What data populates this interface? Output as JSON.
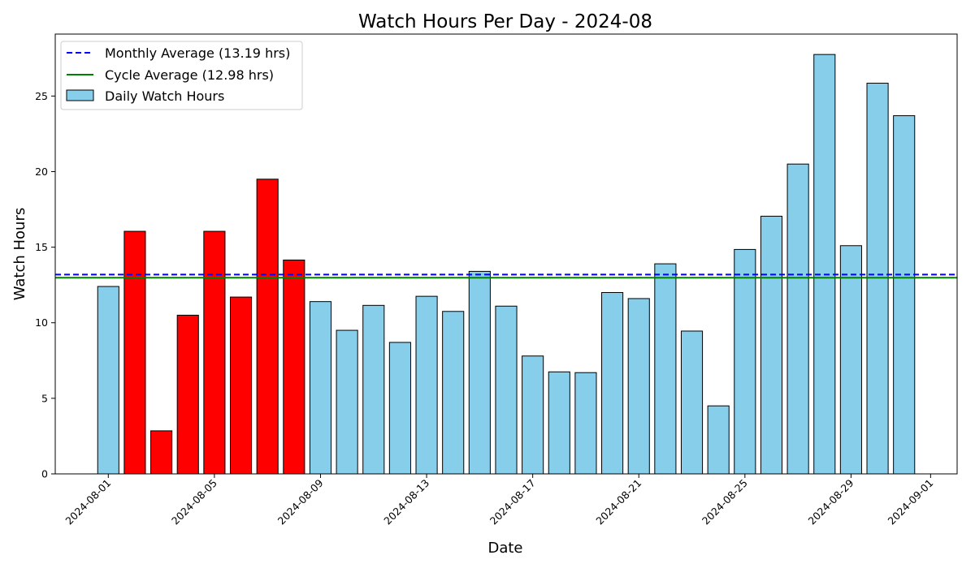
{
  "chart_data": {
    "type": "bar",
    "title": "Watch Hours Per Day - 2024-08",
    "xlabel": "Date",
    "ylabel": "Watch Hours",
    "ylim": [
      0,
      29.1
    ],
    "yticks": [
      0,
      5,
      10,
      15,
      20,
      25
    ],
    "x_range": [
      "2024-07-30",
      "2024-09-01"
    ],
    "xticks": [
      "2024-08-01",
      "2024-08-05",
      "2024-08-09",
      "2024-08-13",
      "2024-08-17",
      "2024-08-21",
      "2024-08-25",
      "2024-08-29",
      "2024-09-01"
    ],
    "categories": [
      "2024-08-01",
      "2024-08-02",
      "2024-08-03",
      "2024-08-04",
      "2024-08-05",
      "2024-08-06",
      "2024-08-07",
      "2024-08-08",
      "2024-08-09",
      "2024-08-10",
      "2024-08-11",
      "2024-08-12",
      "2024-08-13",
      "2024-08-14",
      "2024-08-15",
      "2024-08-16",
      "2024-08-17",
      "2024-08-18",
      "2024-08-19",
      "2024-08-20",
      "2024-08-21",
      "2024-08-22",
      "2024-08-23",
      "2024-08-24",
      "2024-08-25",
      "2024-08-26",
      "2024-08-27",
      "2024-08-28",
      "2024-08-29",
      "2024-08-30",
      "2024-08-31"
    ],
    "values": [
      12.4,
      16.05,
      2.85,
      10.5,
      16.05,
      11.7,
      19.5,
      14.15,
      11.4,
      9.5,
      11.15,
      8.7,
      11.75,
      10.75,
      13.4,
      11.1,
      7.8,
      6.75,
      6.7,
      12.0,
      11.6,
      13.9,
      9.45,
      4.5,
      14.85,
      17.05,
      20.5,
      27.75,
      15.1,
      25.85,
      23.7
    ],
    "highlighted_days": [
      "2024-08-02",
      "2024-08-03",
      "2024-08-04",
      "2024-08-05",
      "2024-08-06",
      "2024-08-07",
      "2024-08-08"
    ],
    "colors": {
      "bar": "#87CEEB",
      "highlight": "#FF0000",
      "edge": "#000000",
      "monthly_avg": "#0000FF",
      "cycle_avg": "#008000"
    },
    "lines": [
      {
        "name": "Monthly Average (13.19 hrs)",
        "value": 13.19,
        "style": "dashed",
        "color": "#0000FF"
      },
      {
        "name": "Cycle Average (12.98 hrs)",
        "value": 12.98,
        "style": "solid",
        "color": "#008000"
      }
    ],
    "bar_series_name": "Daily Watch Hours",
    "legend_position": "top-left",
    "grid": false
  }
}
